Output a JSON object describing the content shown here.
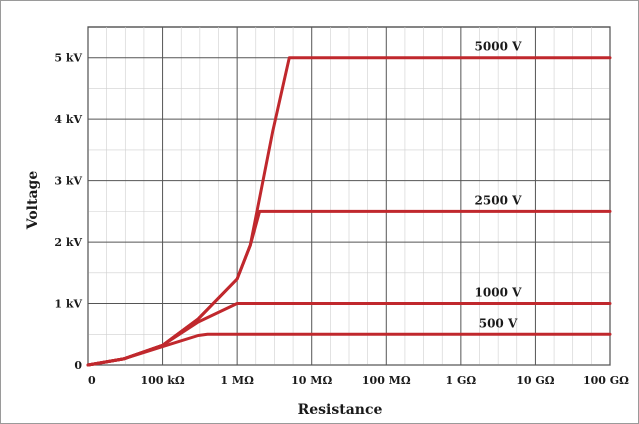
{
  "chart_data": {
    "type": "line",
    "title": "",
    "xlabel": "Resistance",
    "ylabel": "Voltage",
    "x_scale": "log",
    "x_unit": "ohm",
    "x_ticks": [
      {
        "value": 10000,
        "label": "0"
      },
      {
        "value": 100000,
        "label": "100 kΩ"
      },
      {
        "value": 1000000,
        "label": "1 MΩ"
      },
      {
        "value": 10000000,
        "label": "10 MΩ"
      },
      {
        "value": 100000000,
        "label": "100 MΩ"
      },
      {
        "value": 1000000000,
        "label": "1 GΩ"
      },
      {
        "value": 10000000000,
        "label": "10 GΩ"
      },
      {
        "value": 100000000000,
        "label": "100 GΩ"
      }
    ],
    "y_unit": "kV",
    "y_ticks": [
      {
        "value": 0,
        "label": "0"
      },
      {
        "value": 1,
        "label": "1 kV"
      },
      {
        "value": 2,
        "label": "2 kV"
      },
      {
        "value": 3,
        "label": "3 kV"
      },
      {
        "value": 4,
        "label": "4 kV"
      },
      {
        "value": 5,
        "label": "5 kV"
      }
    ],
    "xlim": [
      10000,
      100000000000
    ],
    "ylim": [
      0,
      5.5
    ],
    "grid": true,
    "line_color": "#c0282d",
    "series": [
      {
        "name": "5000 V",
        "x": [
          10000,
          30000,
          100000,
          300000,
          1000000,
          1500000,
          3000000,
          5000000,
          100000000000
        ],
        "y": [
          0,
          0.1,
          0.32,
          0.75,
          1.4,
          1.95,
          3.8,
          5.0,
          5.0
        ]
      },
      {
        "name": "2500 V",
        "x": [
          10000,
          30000,
          100000,
          300000,
          1000000,
          1500000,
          2000000,
          100000000000
        ],
        "y": [
          0,
          0.1,
          0.32,
          0.75,
          1.4,
          1.95,
          2.5,
          2.5
        ]
      },
      {
        "name": "1000 V",
        "x": [
          10000,
          30000,
          100000,
          300000,
          1000000,
          100000000000
        ],
        "y": [
          0,
          0.1,
          0.32,
          0.7,
          1.0,
          1.0
        ]
      },
      {
        "name": "500 V",
        "x": [
          10000,
          30000,
          100000,
          300000,
          400000,
          100000000000
        ],
        "y": [
          0,
          0.1,
          0.3,
          0.48,
          0.5,
          0.5
        ]
      }
    ]
  }
}
